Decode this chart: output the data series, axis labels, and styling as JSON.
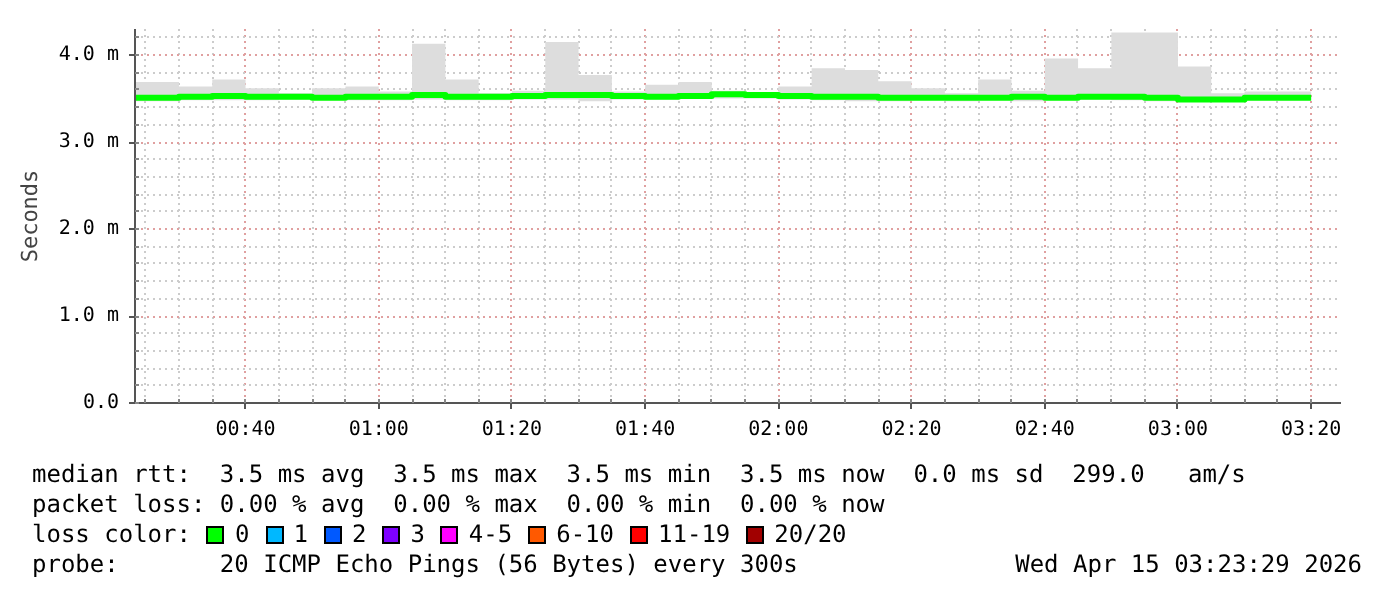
{
  "chart_data": {
    "type": "step",
    "ylabel": "Seconds",
    "x": [
      0.39,
      0.5,
      0.5833,
      0.6667,
      0.75,
      0.8333,
      0.9167,
      1.0,
      1.0833,
      1.1667,
      1.25,
      1.3333,
      1.4167,
      1.5,
      1.5833,
      1.6667,
      1.75,
      1.8333,
      1.9167,
      2.0,
      2.0833,
      2.1667,
      2.25,
      2.3333,
      2.4167,
      2.5,
      2.5833,
      2.6667,
      2.75,
      2.8333,
      2.9167,
      3.0,
      3.0833,
      3.1667,
      3.25,
      3.3333
    ],
    "series": [
      {
        "name": "0",
        "color": "#00ff00",
        "values": [
          3.51,
          3.52,
          3.53,
          3.52,
          3.52,
          3.51,
          3.52,
          3.52,
          3.54,
          3.52,
          3.52,
          3.53,
          3.54,
          3.54,
          3.53,
          3.52,
          3.53,
          3.55,
          3.54,
          3.53,
          3.52,
          3.52,
          3.51,
          3.51,
          3.51,
          3.51,
          3.52,
          3.51,
          3.52,
          3.52,
          3.51,
          3.49,
          3.49,
          3.51,
          3.51,
          3.51
        ],
        "lower": [
          3.47,
          3.48,
          3.48,
          3.48,
          3.49,
          3.48,
          3.48,
          3.48,
          3.49,
          3.48,
          3.48,
          3.49,
          3.49,
          3.47,
          3.49,
          3.49,
          3.5,
          3.5,
          3.5,
          3.49,
          3.48,
          3.47,
          3.47,
          3.48,
          3.47,
          3.48,
          3.47,
          3.48,
          3.49,
          3.48,
          3.47,
          3.46,
          3.46,
          3.48,
          3.48,
          3.48
        ],
        "upper": [
          3.69,
          3.64,
          3.72,
          3.62,
          3.56,
          3.62,
          3.64,
          3.58,
          4.13,
          3.72,
          3.56,
          3.59,
          4.15,
          3.77,
          3.58,
          3.66,
          3.69,
          3.59,
          3.56,
          3.64,
          3.85,
          3.83,
          3.7,
          3.62,
          3.56,
          3.72,
          3.59,
          3.96,
          3.85,
          4.26,
          4.26,
          3.87,
          3.56,
          3.58,
          3.58,
          3.58
        ]
      },
      {
        "name": "1",
        "color": "#00b8ff",
        "values": [
          null,
          null,
          null,
          null,
          null,
          null,
          null,
          null,
          null,
          null,
          null,
          null,
          null,
          null,
          null,
          null,
          null,
          null,
          null,
          null,
          null,
          null,
          null,
          null,
          null,
          null,
          null,
          null,
          null,
          null,
          null,
          null,
          null,
          null,
          null,
          null
        ]
      },
      {
        "name": "2",
        "color": "#0059ff",
        "values": [
          null,
          null,
          null,
          null,
          null,
          null,
          null,
          null,
          null,
          null,
          null,
          null,
          null,
          null,
          null,
          null,
          null,
          null,
          null,
          null,
          null,
          null,
          null,
          null,
          null,
          null,
          null,
          null,
          null,
          null,
          null,
          null,
          null,
          null,
          null,
          null
        ]
      },
      {
        "name": "3",
        "color": "#7e00ff",
        "values": [
          null,
          null,
          null,
          null,
          null,
          null,
          null,
          null,
          null,
          null,
          null,
          null,
          null,
          null,
          null,
          null,
          null,
          null,
          null,
          null,
          null,
          null,
          null,
          null,
          null,
          null,
          null,
          null,
          null,
          null,
          null,
          null,
          null,
          null,
          null,
          null
        ]
      },
      {
        "name": "4-5",
        "color": "#ff00ff",
        "values": [
          null,
          null,
          null,
          null,
          null,
          null,
          null,
          null,
          null,
          null,
          null,
          null,
          null,
          null,
          null,
          null,
          null,
          null,
          null,
          null,
          null,
          null,
          null,
          null,
          null,
          null,
          null,
          null,
          null,
          null,
          null,
          null,
          null,
          null,
          null,
          null
        ]
      },
      {
        "name": "6-10",
        "color": "#ff5900",
        "values": [
          null,
          null,
          null,
          null,
          null,
          null,
          null,
          null,
          null,
          null,
          null,
          null,
          null,
          null,
          null,
          null,
          null,
          null,
          null,
          null,
          null,
          null,
          null,
          null,
          null,
          null,
          null,
          null,
          null,
          null,
          null,
          null,
          null,
          null,
          null,
          null
        ]
      },
      {
        "name": "11-19",
        "color": "#ff0000",
        "values": [
          null,
          null,
          null,
          null,
          null,
          null,
          null,
          null,
          null,
          null,
          null,
          null,
          null,
          null,
          null,
          null,
          null,
          null,
          null,
          null,
          null,
          null,
          null,
          null,
          null,
          null,
          null,
          null,
          null,
          null,
          null,
          null,
          null,
          null,
          null,
          null
        ]
      },
      {
        "name": "20/20",
        "color": "#a10000",
        "values": [
          null,
          null,
          null,
          null,
          null,
          null,
          null,
          null,
          null,
          null,
          null,
          null,
          null,
          null,
          null,
          null,
          null,
          null,
          null,
          null,
          null,
          null,
          null,
          null,
          null,
          null,
          null,
          null,
          null,
          null,
          null,
          null,
          null,
          null,
          null,
          null
        ]
      }
    ],
    "xlim": [
      0.39,
      3.408
    ],
    "xticks": [
      {
        "value": 0.6667,
        "label": "00:40"
      },
      {
        "value": 1.0,
        "label": "01:00"
      },
      {
        "value": 1.3333,
        "label": "01:20"
      },
      {
        "value": 1.6667,
        "label": "01:40"
      },
      {
        "value": 2.0,
        "label": "02:00"
      },
      {
        "value": 2.3333,
        "label": "02:20"
      },
      {
        "value": 2.6667,
        "label": "02:40"
      },
      {
        "value": 3.0,
        "label": "03:00"
      },
      {
        "value": 3.3333,
        "label": "03:20"
      }
    ],
    "ylim": [
      0,
      4.3
    ],
    "yticks": [
      {
        "value": 0,
        "label": "0.0"
      },
      {
        "value": 1,
        "label": "1.0 m"
      },
      {
        "value": 2,
        "label": "2.0 m"
      },
      {
        "value": 3,
        "label": "3.0 m"
      },
      {
        "value": 4,
        "label": "4.0 m"
      }
    ],
    "grid": true,
    "legend": "bottom",
    "annotations": [
      "median rtt:  3.5 ms avg  3.5 ms max  3.5 ms min  3.5 ms now  0.0 ms sd  299.0   am/s",
      "packet loss: 0.00 % avg  0.00 % max  0.00 % min  0.00 % now",
      "loss color:",
      "probe:       20 ICMP Echo Pings (56 Bytes) every 300s",
      "Wed Apr 15 03:23:29 2026"
    ]
  }
}
